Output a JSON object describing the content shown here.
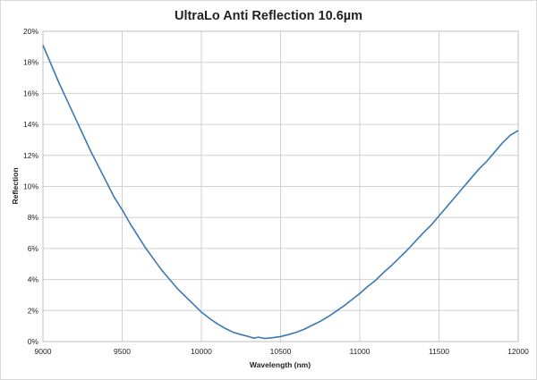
{
  "chart_data": {
    "type": "line",
    "title": "UltraLo Anti Reflection 10.6µm",
    "xlabel": "Wavelength (nm)",
    "ylabel": "Reflection",
    "xlim": [
      9000,
      12000
    ],
    "ylim": [
      0,
      20
    ],
    "x_ticks": [
      9000,
      9500,
      10000,
      10500,
      11000,
      11500,
      12000
    ],
    "x_tick_labels": [
      "9000",
      "9500",
      "10000",
      "10500",
      "11000",
      "11500",
      "12000"
    ],
    "y_ticks": [
      0,
      2,
      4,
      6,
      8,
      10,
      12,
      14,
      16,
      18,
      20
    ],
    "y_tick_labels": [
      "0%",
      "2%",
      "4%",
      "6%",
      "8%",
      "10%",
      "12%",
      "14%",
      "16%",
      "18%",
      "20%"
    ],
    "grid": true,
    "legend": "none",
    "series": [
      {
        "color": "#3c78b4",
        "x": [
          9000,
          9050,
          9100,
          9150,
          9200,
          9250,
          9300,
          9350,
          9400,
          9450,
          9500,
          9550,
          9600,
          9650,
          9700,
          9750,
          9800,
          9850,
          9900,
          9950,
          10000,
          10050,
          10100,
          10150,
          10200,
          10250,
          10300,
          10330,
          10360,
          10400,
          10450,
          10500,
          10550,
          10600,
          10650,
          10700,
          10750,
          10800,
          10850,
          10900,
          10950,
          11000,
          11050,
          11100,
          11150,
          11200,
          11250,
          11300,
          11350,
          11400,
          11450,
          11500,
          11550,
          11600,
          11650,
          11700,
          11750,
          11800,
          11850,
          11900,
          11950,
          12000
        ],
        "y": [
          19.1,
          17.9,
          16.7,
          15.6,
          14.5,
          13.4,
          12.3,
          11.3,
          10.3,
          9.3,
          8.5,
          7.6,
          6.8,
          6.0,
          5.3,
          4.6,
          4.0,
          3.4,
          2.9,
          2.4,
          1.9,
          1.5,
          1.15,
          0.85,
          0.6,
          0.45,
          0.32,
          0.22,
          0.28,
          0.2,
          0.25,
          0.32,
          0.45,
          0.6,
          0.8,
          1.05,
          1.3,
          1.6,
          1.95,
          2.3,
          2.7,
          3.1,
          3.55,
          3.95,
          4.45,
          4.9,
          5.4,
          5.9,
          6.45,
          7.0,
          7.5,
          8.1,
          8.7,
          9.3,
          9.9,
          10.5,
          11.1,
          11.6,
          12.2,
          12.8,
          13.3,
          13.6
        ]
      }
    ]
  }
}
